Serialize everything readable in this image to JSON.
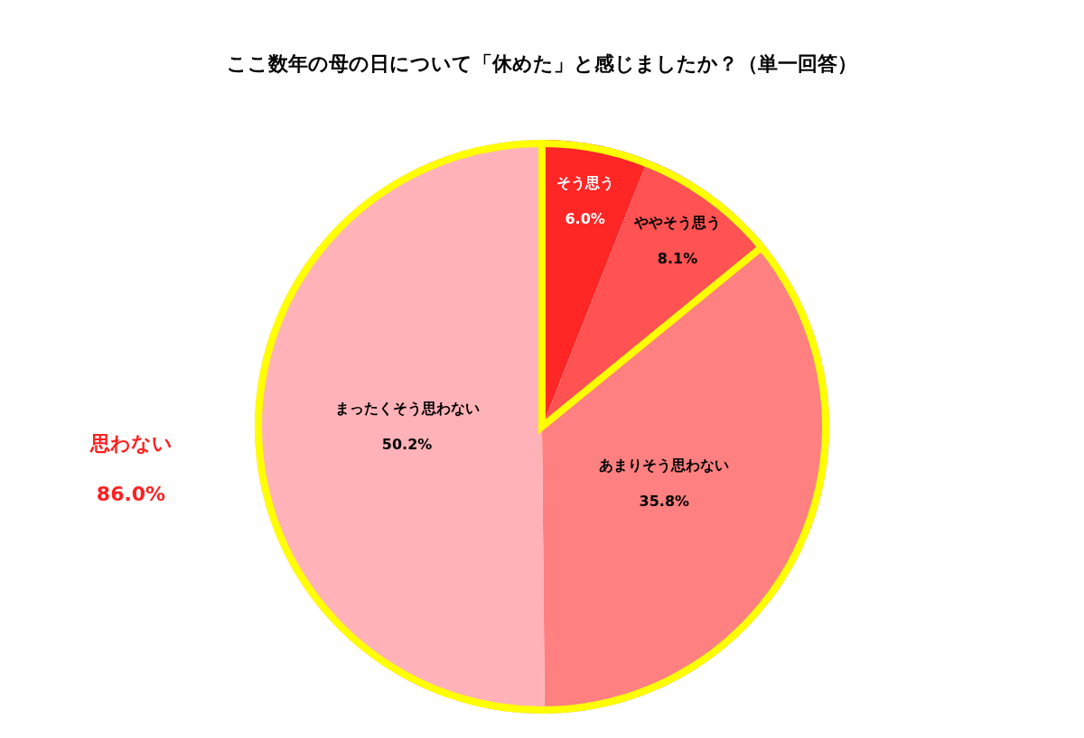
{
  "chart_data": {
    "type": "pie",
    "title": "ここ数年の母の日について「休めた」と感じましたか？（単一回答）",
    "categories": [
      "そう思う",
      "ややそう思う",
      "あまりそう思わない",
      "まったくそう思わない"
    ],
    "values": [
      6.0,
      8.1,
      35.8,
      50.2
    ],
    "colors": [
      "#ff2626",
      "#ff5252",
      "#ff8080",
      "#ffb3b8"
    ],
    "value_labels": [
      "6.0%",
      "8.1%",
      "35.8%",
      "50.2%"
    ],
    "annotations": [
      "思わない",
      "86.0%"
    ]
  }
}
